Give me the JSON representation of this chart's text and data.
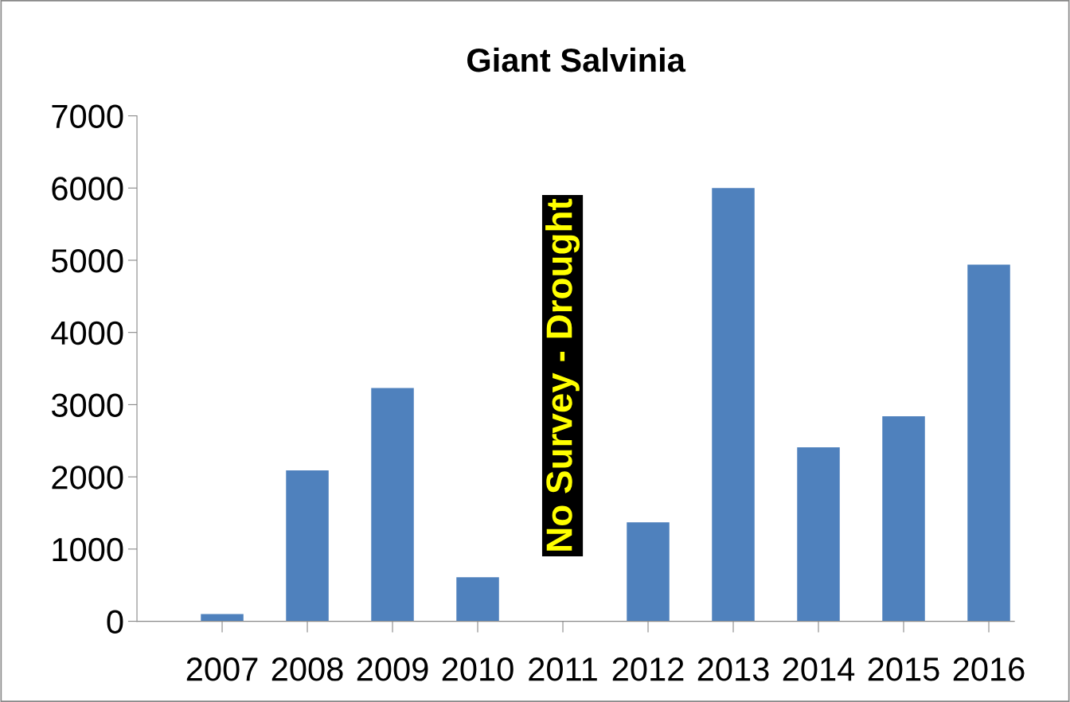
{
  "chart_data": {
    "type": "bar",
    "title": "Giant Salvinia",
    "categories": [
      "2007",
      "2008",
      "2009",
      "2010",
      "2011",
      "2012",
      "2013",
      "2014",
      "2015",
      "2016"
    ],
    "values": [
      100,
      2090,
      3230,
      610,
      null,
      1370,
      6000,
      2410,
      2840,
      4940
    ],
    "color": "#4f81bd",
    "ylim": [
      0,
      7000
    ],
    "yticks": [
      0,
      1000,
      2000,
      3000,
      4000,
      5000,
      6000,
      7000
    ],
    "grid": false,
    "legend": false,
    "annotations": [
      "No Survey - Drought"
    ]
  }
}
